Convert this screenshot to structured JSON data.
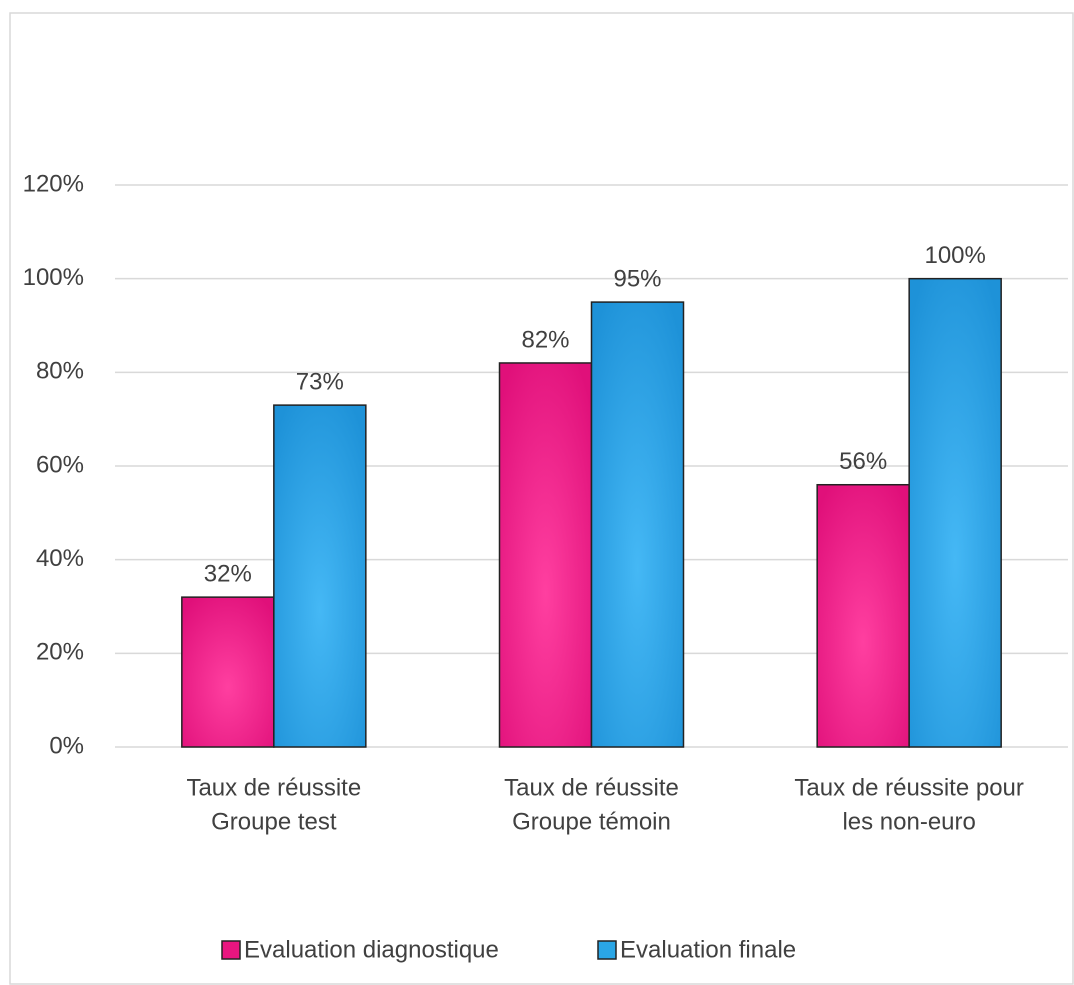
{
  "chart_data": {
    "type": "bar",
    "categories": [
      [
        "Taux de réussite",
        "Groupe test"
      ],
      [
        "Taux de réussite",
        "Groupe témoin"
      ],
      [
        "Taux de réussite pour",
        "les non-euro"
      ]
    ],
    "series": [
      {
        "name": "Evaluation diagnostique",
        "color": "#e8157f",
        "values": [
          32,
          82,
          56
        ],
        "value_labels": [
          "32%",
          "82%",
          "56%"
        ]
      },
      {
        "name": "Evaluation finale",
        "color": "#2aa6e6",
        "values": [
          73,
          95,
          100
        ],
        "value_labels": [
          "73%",
          "95%",
          "100%"
        ]
      }
    ],
    "ylim": [
      0,
      120
    ],
    "yticks": [
      {
        "value": 0,
        "label": "0%"
      },
      {
        "value": 20,
        "label": "20%"
      },
      {
        "value": 40,
        "label": "40%"
      },
      {
        "value": 60,
        "label": "60%"
      },
      {
        "value": 80,
        "label": "80%"
      },
      {
        "value": 100,
        "label": "100%"
      },
      {
        "value": 120,
        "label": "120%"
      }
    ],
    "grid": true,
    "legend": "bottom"
  }
}
